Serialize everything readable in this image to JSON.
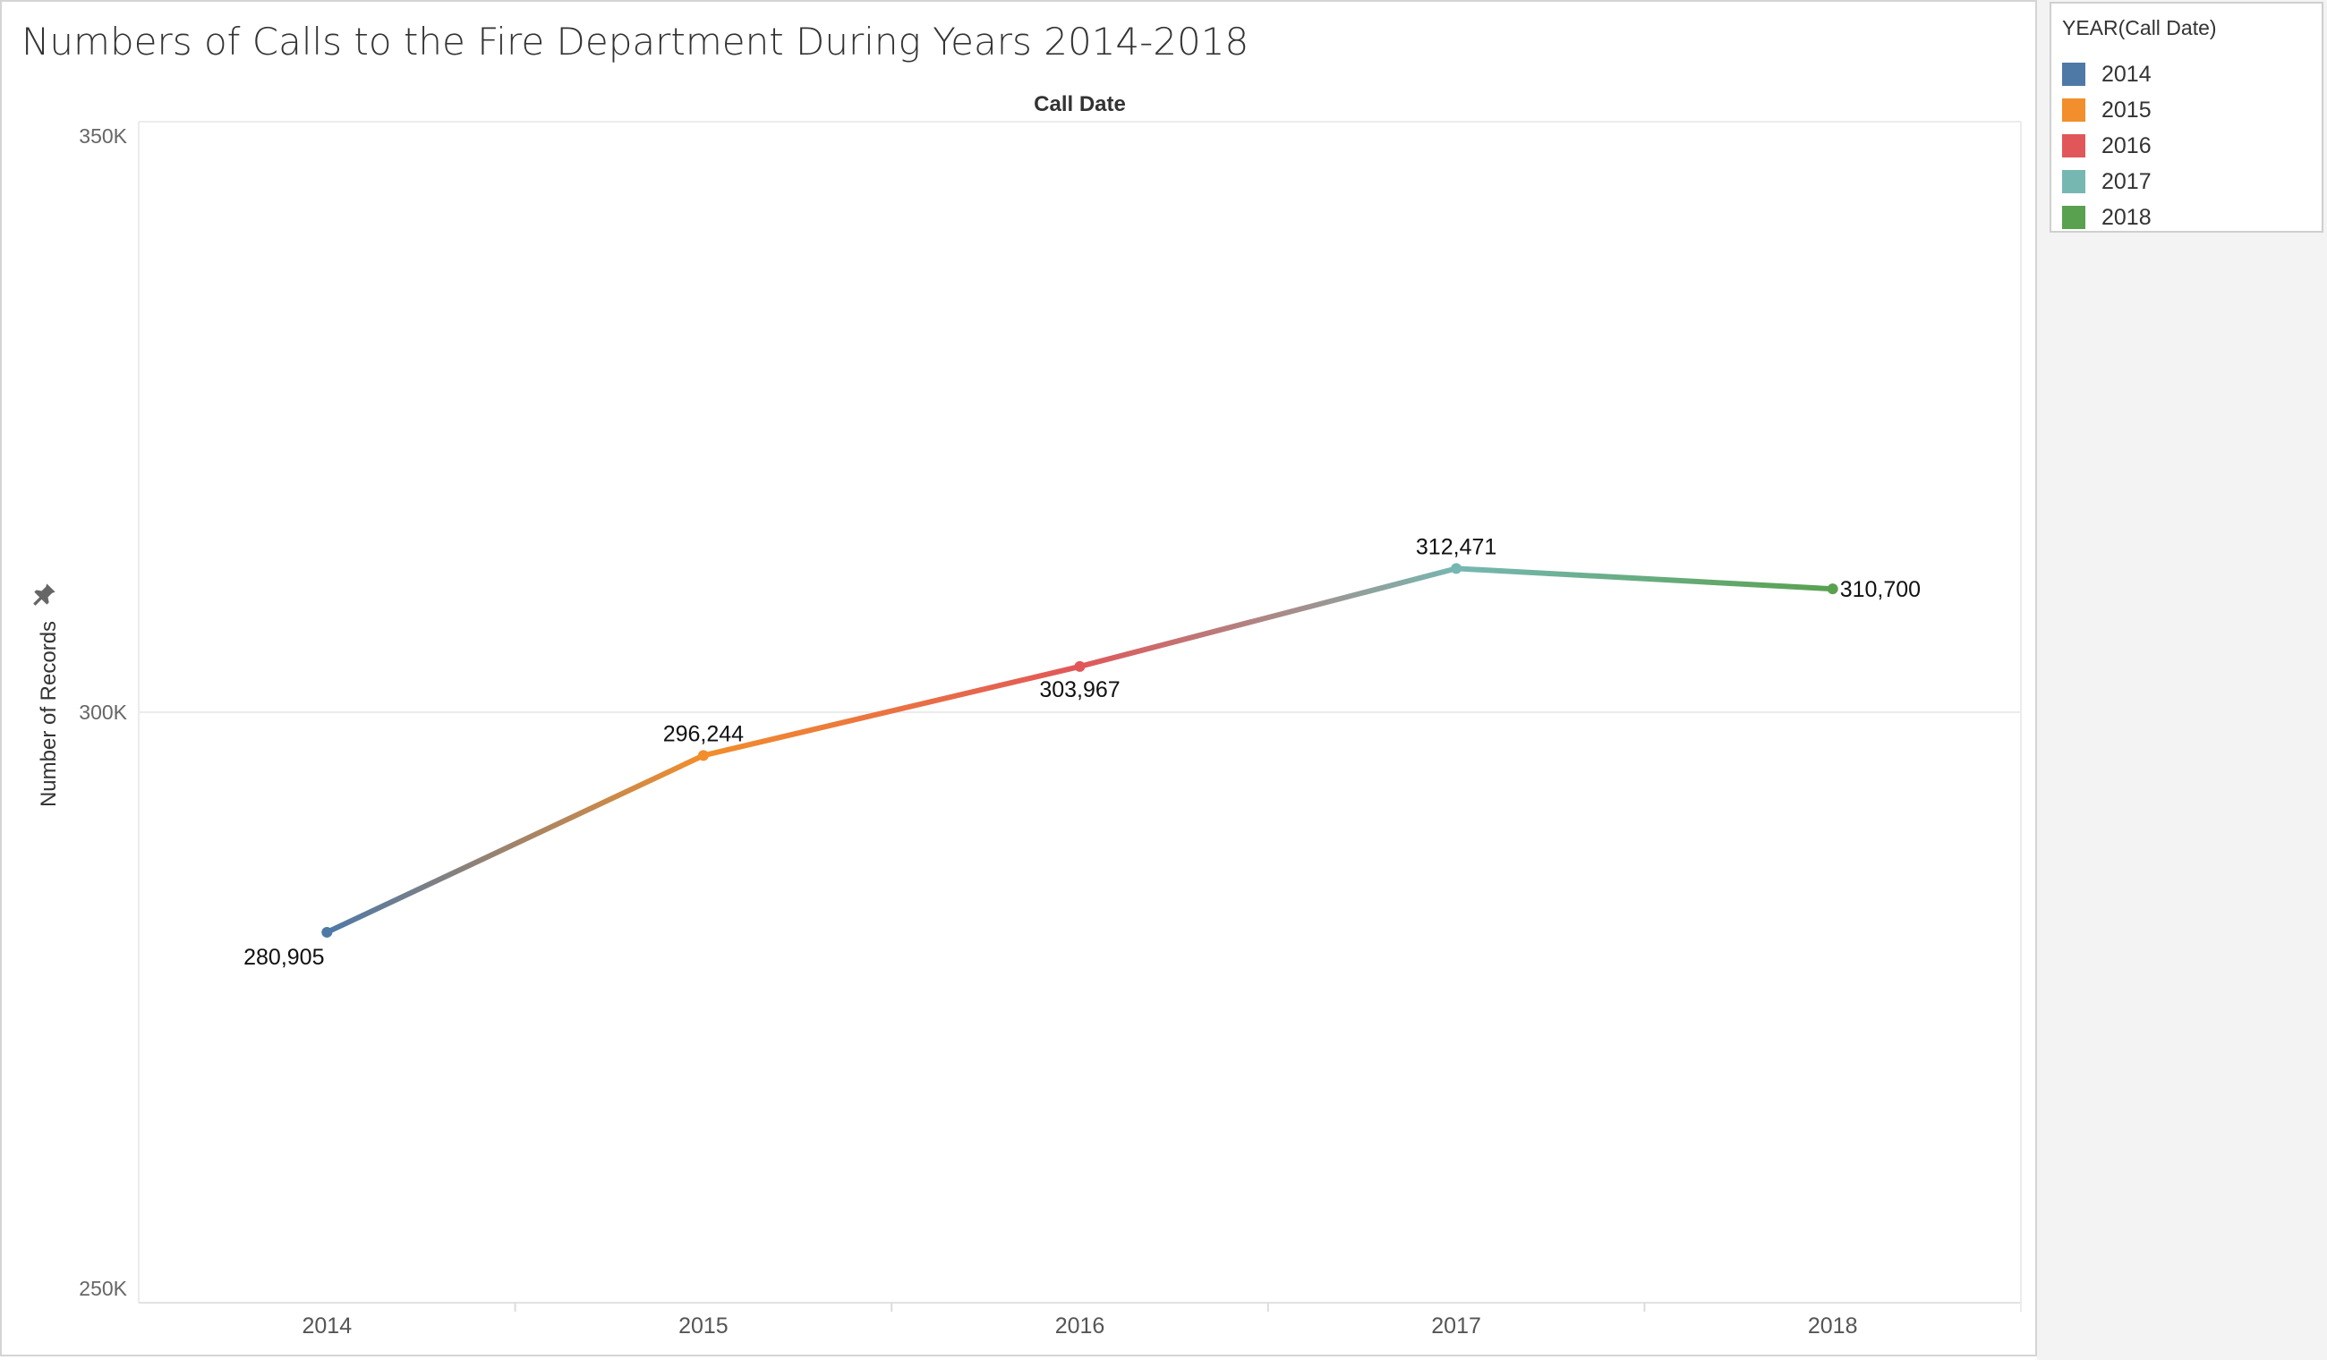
{
  "title": "Numbers of Calls to the Fire Department During Years 2014-2018",
  "legend": {
    "title": "YEAR(Call Date)",
    "items": [
      {
        "label": "2014",
        "color": "#4e79a7"
      },
      {
        "label": "2015",
        "color": "#f28e2b"
      },
      {
        "label": "2016",
        "color": "#e15759"
      },
      {
        "label": "2017",
        "color": "#76b7b2"
      },
      {
        "label": "2018",
        "color": "#59a14f"
      }
    ]
  },
  "chart_data": {
    "type": "line",
    "title": "Numbers of Calls to the Fire Department During Years 2014-2018",
    "xlabel": "Call Date",
    "ylabel": "Number of Records",
    "categories": [
      "2014",
      "2015",
      "2016",
      "2017",
      "2018"
    ],
    "values": [
      280905,
      296244,
      303967,
      312471,
      310700
    ],
    "data_labels": [
      "280,905",
      "296,244",
      "303,967",
      "312,471",
      "310,700"
    ],
    "colors": [
      "#4e79a7",
      "#f28e2b",
      "#e15759",
      "#76b7b2",
      "#59a14f"
    ],
    "ylim": [
      250000,
      350000
    ],
    "yticks": [
      250000,
      300000,
      350000
    ],
    "ytick_labels": [
      "250K",
      "300K",
      "350K"
    ],
    "grid": true,
    "legend_position": "right"
  }
}
